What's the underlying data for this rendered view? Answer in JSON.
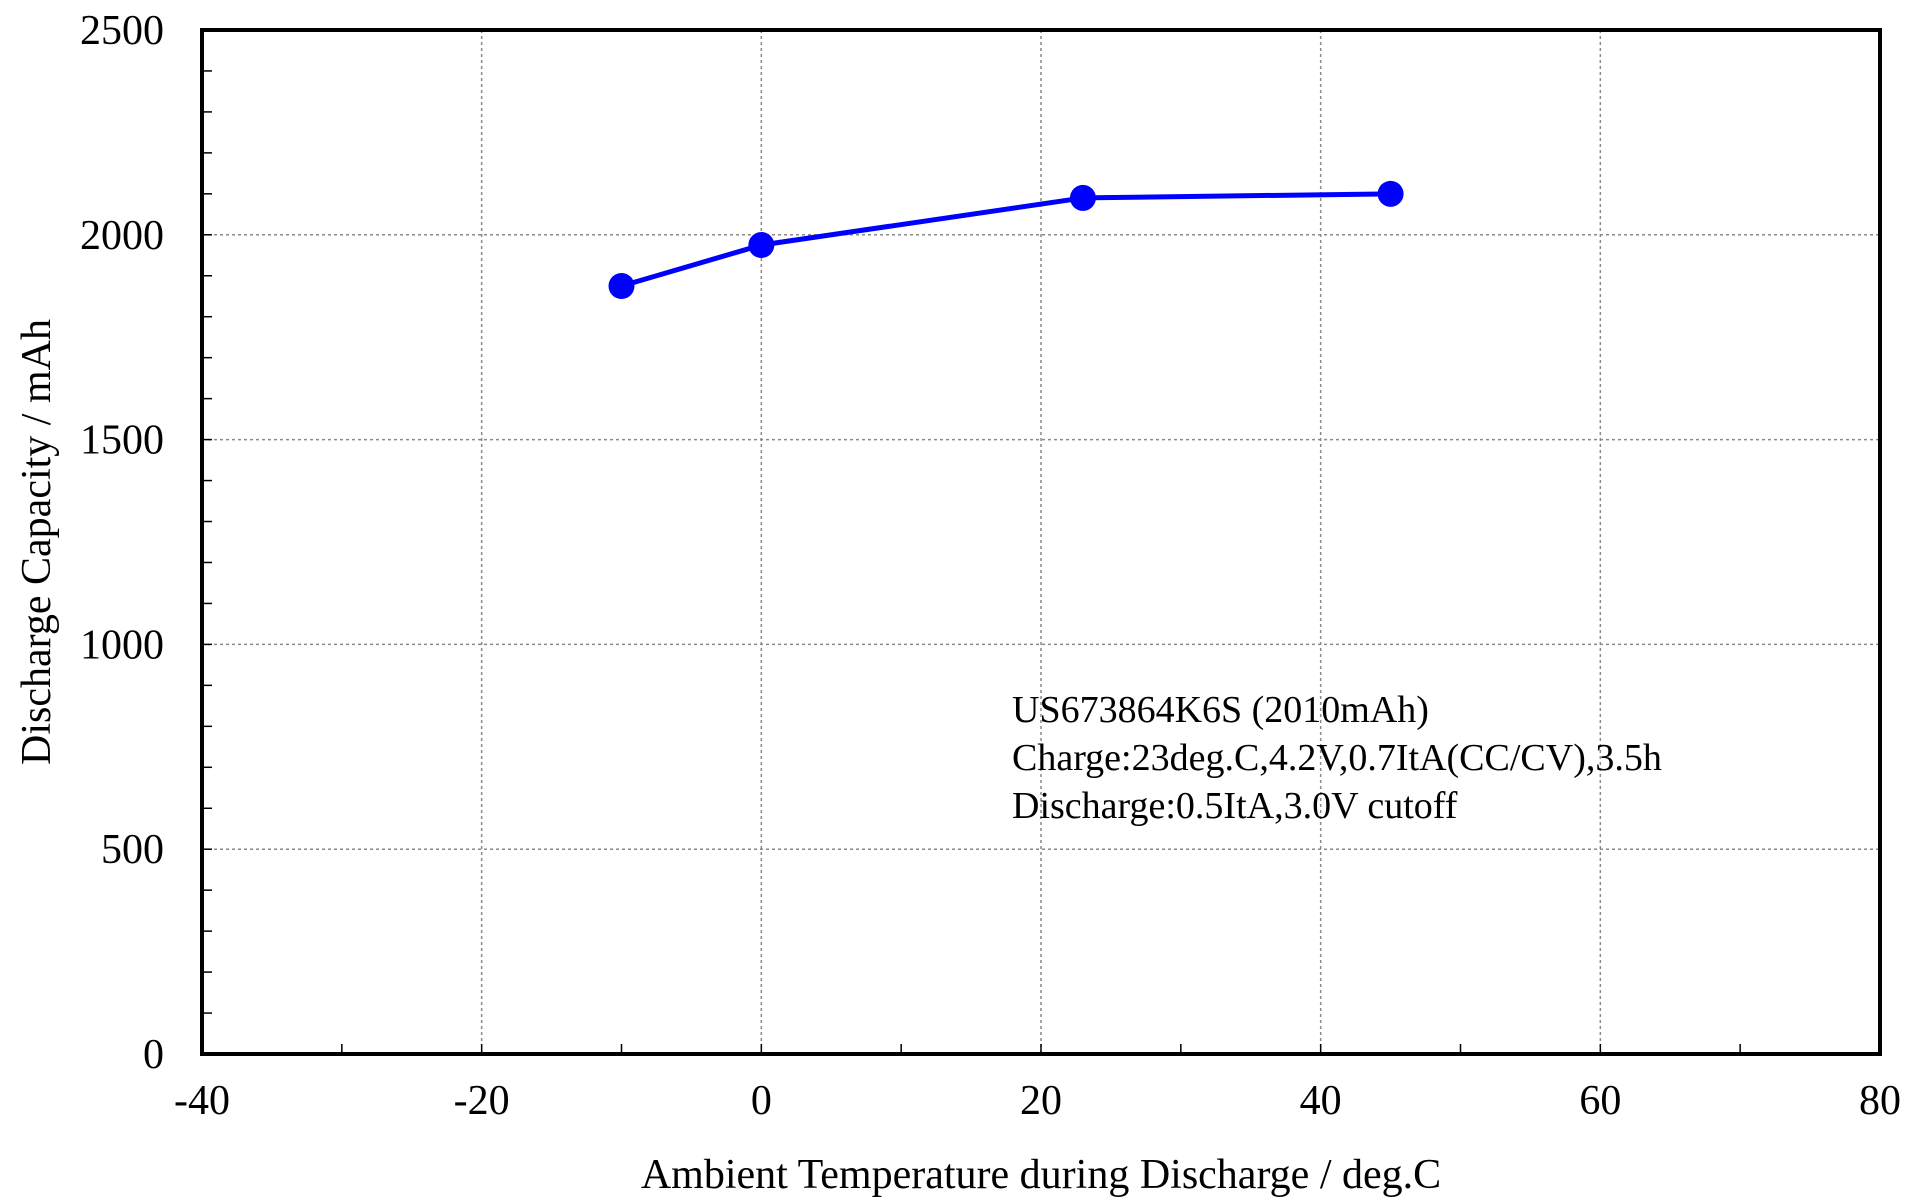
{
  "chart_data": {
    "type": "line",
    "title": "",
    "xlabel": "Ambient Temperature during Discharge / deg.C",
    "ylabel": "Discharge Capacity / mAh",
    "xlim": [
      -40,
      80
    ],
    "ylim": [
      0,
      2500
    ],
    "x_ticks": [
      -40,
      -20,
      0,
      20,
      40,
      60,
      80
    ],
    "x_tick_labels": [
      "-40",
      "-20",
      "0",
      "20",
      "40",
      "60",
      "80"
    ],
    "y_ticks": [
      0,
      500,
      1000,
      1500,
      2000,
      2500
    ],
    "y_tick_labels": [
      "0",
      "500",
      "1000",
      "1500",
      "2000",
      "2500"
    ],
    "x_minor_step": 10,
    "y_minor_step": 100,
    "grid": true,
    "grid_style": "dotted",
    "series": [
      {
        "color": "#0000ff",
        "marker": "circle",
        "x": [
          -10,
          0,
          23,
          45
        ],
        "y": [
          1875,
          1975,
          2090,
          2100
        ]
      }
    ],
    "annotation": [
      "US673864K6S (2010mAh)",
      "Charge:23deg.C,4.2V,0.7ItA(CC/CV),3.5h",
      "Discharge:0.5ItA,3.0V cutoff"
    ]
  }
}
